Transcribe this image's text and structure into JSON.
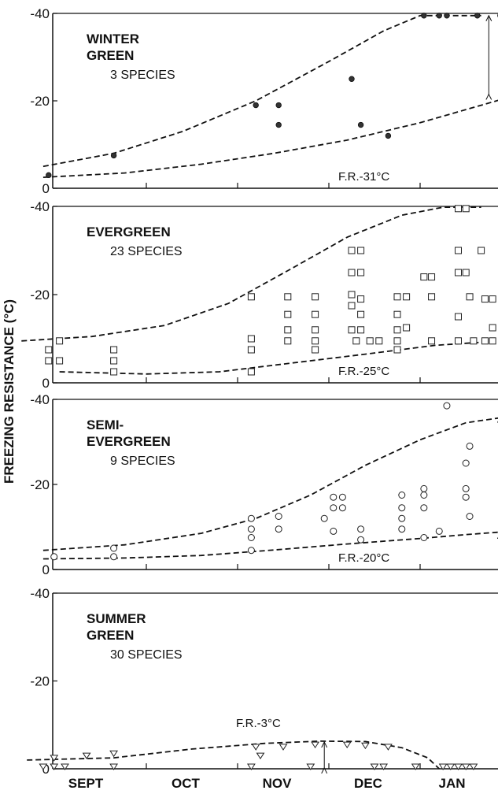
{
  "figure": {
    "ylabel": "FREEZING  RESISTANCE  (°C)",
    "month_labels": [
      "SEPT",
      "OCT",
      "NOV",
      "DEC",
      "JAN"
    ]
  },
  "chart_data": [
    {
      "type": "scatter",
      "title_lines": [
        "WINTER",
        "GREEN"
      ],
      "species": "3 SPECIES",
      "fr_label": "F.R.-31°C",
      "ylim": [
        0,
        40
      ],
      "y_ticks": [
        "0",
        "-20",
        "-40"
      ],
      "marker": "filled-circle",
      "points": [
        [
          0.1,
          3
        ],
        [
          0.7,
          7.5
        ],
        [
          2.2,
          19
        ],
        [
          2.45,
          19
        ],
        [
          2.45,
          14.5
        ],
        [
          3.25,
          25
        ],
        [
          3.35,
          14.5
        ],
        [
          3.65,
          12
        ],
        [
          4.05,
          39.5
        ],
        [
          4.25,
          39.5
        ],
        [
          4.35,
          39.5
        ],
        [
          4.75,
          39.5
        ],
        [
          5.05,
          39.5
        ],
        [
          5.45,
          29
        ],
        [
          5.7,
          24.5
        ],
        [
          5.85,
          39.5
        ],
        [
          6.45,
          34
        ],
        [
          6.5,
          39.5
        ],
        [
          6.6,
          39.5
        ]
      ],
      "upper_envelope": [
        [
          0.05,
          5
        ],
        [
          0.7,
          8
        ],
        [
          1.4,
          13
        ],
        [
          2.2,
          20
        ],
        [
          3.0,
          29
        ],
        [
          3.6,
          36
        ],
        [
          4.0,
          39.5
        ],
        [
          4.8,
          39.5
        ]
      ],
      "lower_envelope": [
        [
          0.05,
          2.5
        ],
        [
          0.8,
          3.5
        ],
        [
          1.6,
          5.5
        ],
        [
          2.4,
          8
        ],
        [
          3.2,
          11
        ],
        [
          4.0,
          15
        ],
        [
          4.8,
          19
        ],
        [
          5.6,
          23
        ],
        [
          6.6,
          26.5
        ]
      ],
      "range_arrow": {
        "x": 4.9,
        "y_from": 39.5,
        "y_to": 21.5
      }
    },
    {
      "type": "scatter",
      "title_lines": [
        "EVERGREEN"
      ],
      "species": "23 SPECIES",
      "fr_label": "F.R.-25°C",
      "ylim": [
        0,
        40
      ],
      "y_ticks": [
        "0",
        "-20",
        "-40"
      ],
      "marker": "open-square",
      "points": [
        [
          0.1,
          7.5
        ],
        [
          0.2,
          9.5
        ],
        [
          0.1,
          5
        ],
        [
          0.2,
          5
        ],
        [
          0.7,
          7.5
        ],
        [
          0.7,
          5
        ],
        [
          0.7,
          2.5
        ],
        [
          2.15,
          19.5
        ],
        [
          2.15,
          10
        ],
        [
          2.15,
          7.5
        ],
        [
          2.15,
          2.5
        ],
        [
          2.55,
          19.5
        ],
        [
          2.55,
          15.5
        ],
        [
          2.55,
          12
        ],
        [
          2.55,
          9.5
        ],
        [
          2.85,
          19.5
        ],
        [
          2.85,
          15.5
        ],
        [
          2.85,
          12
        ],
        [
          2.85,
          9.5
        ],
        [
          2.85,
          7.5
        ],
        [
          3.25,
          30
        ],
        [
          3.35,
          30
        ],
        [
          3.25,
          25
        ],
        [
          3.35,
          25
        ],
        [
          3.25,
          20
        ],
        [
          3.35,
          19
        ],
        [
          3.25,
          17.5
        ],
        [
          3.35,
          15.5
        ],
        [
          3.25,
          12
        ],
        [
          3.35,
          12
        ],
        [
          3.3,
          9.5
        ],
        [
          3.45,
          9.5
        ],
        [
          3.55,
          9.5
        ],
        [
          3.75,
          19.5
        ],
        [
          3.75,
          15.5
        ],
        [
          3.75,
          12
        ],
        [
          3.75,
          9.5
        ],
        [
          3.75,
          7.5
        ],
        [
          3.85,
          19.5
        ],
        [
          3.85,
          12.5
        ],
        [
          4.15,
          19.5
        ],
        [
          4.15,
          9.5
        ],
        [
          4.05,
          24
        ],
        [
          4.15,
          24
        ],
        [
          4.5,
          25
        ],
        [
          4.5,
          9.5
        ],
        [
          4.6,
          25
        ],
        [
          4.5,
          30
        ],
        [
          4.5,
          15
        ],
        [
          4.8,
          30
        ],
        [
          4.65,
          19.5
        ],
        [
          4.7,
          9.5
        ],
        [
          4.85,
          19
        ],
        [
          4.85,
          9.5
        ],
        [
          4.95,
          19
        ],
        [
          4.95,
          12.5
        ],
        [
          4.95,
          9.5
        ],
        [
          4.5,
          39.5
        ],
        [
          4.6,
          39.5
        ],
        [
          5.4,
          39.5
        ],
        [
          5.45,
          35
        ],
        [
          5.45,
          30
        ],
        [
          5.45,
          25
        ],
        [
          5.45,
          19
        ],
        [
          5.45,
          12.5
        ],
        [
          5.45,
          9.5
        ],
        [
          5.5,
          9.5
        ],
        [
          5.75,
          39.5
        ],
        [
          5.85,
          39.5
        ],
        [
          5.65,
          25
        ],
        [
          5.65,
          19
        ],
        [
          5.75,
          25
        ],
        [
          5.75,
          19.5
        ],
        [
          5.8,
          22.5
        ],
        [
          5.85,
          18
        ],
        [
          5.9,
          12.5
        ],
        [
          5.95,
          22.5
        ],
        [
          5.95,
          17.5
        ],
        [
          5.9,
          9.5
        ],
        [
          5.95,
          9.5
        ],
        [
          6.5,
          39.5
        ],
        [
          6.6,
          39.5
        ],
        [
          6.55,
          35
        ],
        [
          6.5,
          30
        ],
        [
          6.6,
          30
        ],
        [
          6.5,
          25
        ],
        [
          6.6,
          25
        ],
        [
          6.5,
          19.5
        ],
        [
          6.6,
          19.5
        ],
        [
          6.55,
          12
        ],
        [
          6.55,
          9.5
        ],
        [
          6.5,
          5
        ]
      ],
      "upper_envelope": [
        [
          -0.15,
          9.5
        ],
        [
          0.5,
          10.5
        ],
        [
          1.2,
          13
        ],
        [
          1.9,
          18
        ],
        [
          2.6,
          26
        ],
        [
          3.2,
          33
        ],
        [
          3.8,
          38
        ],
        [
          4.3,
          39.8
        ],
        [
          4.8,
          39.8
        ]
      ],
      "lower_envelope": [
        [
          0.2,
          2.5
        ],
        [
          1.0,
          2
        ],
        [
          1.8,
          2.5
        ],
        [
          2.6,
          4.5
        ],
        [
          3.4,
          6.5
        ],
        [
          4.2,
          8.5
        ],
        [
          4.8,
          9.2
        ],
        [
          5.4,
          8.5
        ],
        [
          6.0,
          6.5
        ],
        [
          6.6,
          4
        ],
        [
          6.9,
          1.5
        ]
      ],
      "range_arrow": {
        "x": 5.3,
        "y_from": 39.5,
        "y_to": 8.8
      }
    },
    {
      "type": "scatter",
      "title_lines": [
        "SEMI-",
        "EVERGREEN"
      ],
      "species": "9 SPECIES",
      "fr_label": "F.R.-20°C",
      "ylim": [
        0,
        40
      ],
      "y_ticks": [
        "0",
        "-20",
        "-40"
      ],
      "marker": "open-circle",
      "points": [
        [
          0.15,
          3
        ],
        [
          0.7,
          5
        ],
        [
          0.7,
          3
        ],
        [
          2.15,
          12
        ],
        [
          2.15,
          9.5
        ],
        [
          2.15,
          7.5
        ],
        [
          2.15,
          4.5
        ],
        [
          2.45,
          12.5
        ],
        [
          2.45,
          9.5
        ],
        [
          2.95,
          12
        ],
        [
          3.05,
          17
        ],
        [
          3.15,
          17
        ],
        [
          3.05,
          14.5
        ],
        [
          3.15,
          14.5
        ],
        [
          3.05,
          9
        ],
        [
          3.35,
          9.5
        ],
        [
          3.35,
          7
        ],
        [
          3.8,
          17.5
        ],
        [
          3.8,
          14.5
        ],
        [
          3.8,
          12
        ],
        [
          3.8,
          9.5
        ],
        [
          4.05,
          17.5
        ],
        [
          4.05,
          19
        ],
        [
          4.05,
          14.5
        ],
        [
          4.05,
          7.5
        ],
        [
          4.35,
          38.5
        ],
        [
          4.25,
          9
        ],
        [
          4.65,
          29
        ],
        [
          4.6,
          25
        ],
        [
          4.6,
          19
        ],
        [
          4.6,
          17
        ],
        [
          4.65,
          12.5
        ],
        [
          5.5,
          29
        ],
        [
          5.5,
          24.5
        ],
        [
          5.5,
          21.5
        ],
        [
          5.55,
          17
        ],
        [
          5.65,
          17.5
        ],
        [
          5.75,
          17.5
        ],
        [
          5.75,
          12.5
        ],
        [
          5.5,
          9
        ],
        [
          6.6,
          12.5
        ]
      ],
      "upper_envelope": [
        [
          0.05,
          4.5
        ],
        [
          0.8,
          5.8
        ],
        [
          1.6,
          8.5
        ],
        [
          2.2,
          12
        ],
        [
          2.8,
          17.5
        ],
        [
          3.4,
          24.5
        ],
        [
          4.0,
          30.5
        ],
        [
          4.6,
          34.5
        ],
        [
          5.1,
          35.8
        ],
        [
          5.6,
          35
        ]
      ],
      "lower_envelope": [
        [
          0.05,
          2.5
        ],
        [
          0.8,
          2.7
        ],
        [
          1.6,
          3.3
        ],
        [
          2.4,
          4.6
        ],
        [
          3.2,
          6
        ],
        [
          4.0,
          7.3
        ],
        [
          4.6,
          8.2
        ],
        [
          5.2,
          9
        ],
        [
          5.7,
          9
        ],
        [
          6.2,
          8.5
        ],
        [
          6.9,
          7.5
        ]
      ],
      "range_arrow": {
        "x": 5.05,
        "y_from": 35.8,
        "y_to": 8.5
      }
    },
    {
      "type": "scatter",
      "title_lines": [
        "SUMMER",
        "GREEN"
      ],
      "species": "30 SPECIES",
      "fr_label": "F.R.-3°C",
      "ylim": [
        0,
        40
      ],
      "y_ticks": [
        "0",
        "-20",
        "-40"
      ],
      "marker": "open-triangle-down",
      "points": [
        [
          0.05,
          0
        ],
        [
          0.15,
          0
        ],
        [
          0.25,
          0
        ],
        [
          0.15,
          2
        ],
        [
          0.45,
          2.5
        ],
        [
          0.7,
          0
        ],
        [
          0.7,
          3
        ],
        [
          2.15,
          0
        ],
        [
          2.2,
          4.5
        ],
        [
          2.25,
          2.5
        ],
        [
          2.5,
          4.5
        ],
        [
          2.85,
          5
        ],
        [
          2.8,
          0
        ],
        [
          3.2,
          5
        ],
        [
          3.5,
          0
        ],
        [
          3.65,
          4.5
        ],
        [
          3.95,
          0
        ],
        [
          4.3,
          0
        ],
        [
          4.4,
          0
        ],
        [
          4.5,
          0
        ],
        [
          4.6,
          0
        ],
        [
          4.7,
          0
        ],
        [
          5.35,
          0
        ],
        [
          5.5,
          0
        ],
        [
          5.6,
          0
        ],
        [
          5.7,
          0
        ],
        [
          5.8,
          0
        ],
        [
          3.4,
          4.8
        ],
        [
          3.6,
          0
        ]
      ],
      "upper_envelope": [
        [
          -0.1,
          2
        ],
        [
          0.7,
          2.5
        ],
        [
          1.5,
          4.5
        ],
        [
          2.3,
          5.8
        ],
        [
          2.9,
          6.3
        ],
        [
          3.4,
          6.2
        ],
        [
          3.8,
          4.8
        ],
        [
          4.1,
          2.5
        ],
        [
          4.25,
          0
        ]
      ],
      "lower_envelope": [],
      "range_arrow": {
        "x": 2.95,
        "y_from": 6.1,
        "y_to": 0.2
      }
    }
  ]
}
